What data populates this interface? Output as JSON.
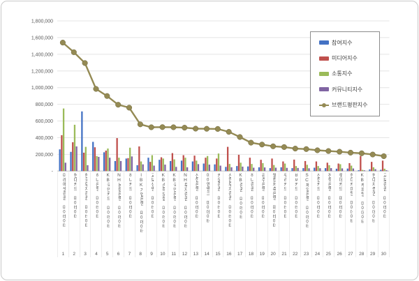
{
  "chart_data": {
    "type": "bar",
    "combo": "bar series with overlay line series",
    "title": "",
    "grid": true,
    "legend_position": "top-right",
    "categories": [
      "미래에셋증권 마이데이터",
      "현대카드 마이데이터",
      "한국투자증권 마이데이터",
      "하나은행 마이데이터",
      "KB국민카드 마이데이터",
      "NH농협은행 마이데이터",
      "하나카드 마이데이터",
      "IBK기업은행 마이데이터",
      "교보생명 마이데이터",
      "KB손해보험 마이데이터",
      "KB국민은행 마이데이터",
      "NH투자증권 마이데이터",
      "신한은행 마이데이터",
      "아이엠뱅크 마이데이터",
      "키움증권 마이데이터",
      "신한투자증권 마이데이터",
      "KB증권 마이데이터",
      "하나증권 마이데이터",
      "광주은행 마이데이터",
      "웰컴저축은행 마이데이터",
      "우리카드 마이데이터",
      "비씨카드 마이데이터",
      "SC제일은행 마이데이터",
      "신한카드 마이데이터",
      "전북은행 마이데이터",
      "롯데카드 마이데이터",
      "현대캐피탈 마이데이터",
      "KB캐피탈 마이데이터",
      "현대차증권 마이데이터",
      "교보증권 마이데이터"
    ],
    "index_labels": [
      "1",
      "2",
      "3",
      "4",
      "5",
      "6",
      "7",
      "8",
      "9",
      "10",
      "11",
      "12",
      "13",
      "14",
      "15",
      "16",
      "17",
      "18",
      "19",
      "20",
      "21",
      "22",
      "23",
      "24",
      "25",
      "26",
      "27",
      "28",
      "29",
      "30"
    ],
    "series": [
      {
        "name": "참여지수",
        "type": "bar",
        "color": "#4472C4",
        "values": [
          260000,
          230000,
          715000,
          350000,
          225000,
          120000,
          150000,
          70000,
          160000,
          135000,
          120000,
          125000,
          115000,
          90000,
          80000,
          50000,
          60000,
          55000,
          45000,
          35000,
          45000,
          35000,
          35000,
          40000,
          35000,
          28000,
          30000,
          10000,
          20000,
          15000
        ]
      },
      {
        "name": "미디어지수",
        "type": "bar",
        "color": "#C0504D",
        "values": [
          430000,
          345000,
          220000,
          285000,
          245000,
          395000,
          155000,
          295000,
          110000,
          165000,
          215000,
          190000,
          185000,
          160000,
          150000,
          290000,
          195000,
          160000,
          135000,
          150000,
          115000,
          137000,
          120000,
          115000,
          100000,
          90000,
          95000,
          180000,
          110000,
          125000
        ]
      },
      {
        "name": "소통지수",
        "type": "bar",
        "color": "#9BBB59",
        "values": [
          750000,
          555000,
          290000,
          180000,
          270000,
          160000,
          280000,
          115000,
          190000,
          150000,
          140000,
          160000,
          125000,
          180000,
          210000,
          85000,
          100000,
          85000,
          95000,
          72000,
          90000,
          60000,
          75000,
          60000,
          70000,
          82000,
          65000,
          14000,
          45000,
          28000
        ]
      },
      {
        "name": "커뮤니티지수",
        "type": "bar",
        "color": "#8064A2",
        "values": [
          100000,
          295000,
          70000,
          170000,
          160000,
          120000,
          175000,
          80000,
          65000,
          77000,
          50000,
          45000,
          83000,
          77000,
          65000,
          45000,
          53000,
          40000,
          43000,
          40000,
          38000,
          37000,
          33000,
          34000,
          35000,
          32000,
          31000,
          9000,
          23000,
          10000
        ]
      },
      {
        "name": "브랜드평판지수",
        "type": "line",
        "color": "#948A54",
        "values": [
          1540000,
          1425000,
          1295000,
          985000,
          900000,
          795000,
          760000,
          560000,
          525000,
          527000,
          525000,
          520000,
          508000,
          507000,
          505000,
          470000,
          408000,
          340000,
          318000,
          297000,
          288000,
          269000,
          263000,
          249000,
          240000,
          232000,
          221000,
          213000,
          198000,
          178000
        ]
      }
    ],
    "y_axis": {
      "min": 0,
      "max": 1800000,
      "step": 200000,
      "tick_labels": [
        "-",
        "200,000",
        "400,000",
        "600,000",
        "800,000",
        "1,000,000",
        "1,200,000",
        "1,400,000",
        "1,600,000",
        "1,800,000"
      ]
    }
  }
}
